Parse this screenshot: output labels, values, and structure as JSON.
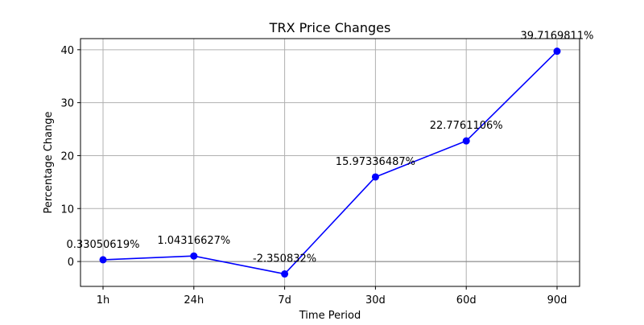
{
  "chart_data": {
    "type": "line",
    "title": "TRX Price Changes",
    "xlabel": "Time Period",
    "ylabel": "Percentage Change",
    "categories": [
      "1h",
      "24h",
      "7d",
      "30d",
      "60d",
      "90d"
    ],
    "series": [
      {
        "values": [
          0.33050619,
          1.04316627,
          -2.350832,
          15.97336487,
          22.7761106,
          39.7169811
        ],
        "data_labels": [
          "0.33050619%",
          "1.04316627%",
          "-2.350832%",
          "15.97336487%",
          "22.7761106%",
          "39.7169811%"
        ],
        "color": "#0000ff",
        "marker": "circle"
      }
    ],
    "ylim": [
      -4.7,
      42.1
    ],
    "yticks": [
      0,
      10,
      20,
      30,
      40
    ],
    "grid": true,
    "zero_line": true,
    "legend": "none"
  }
}
